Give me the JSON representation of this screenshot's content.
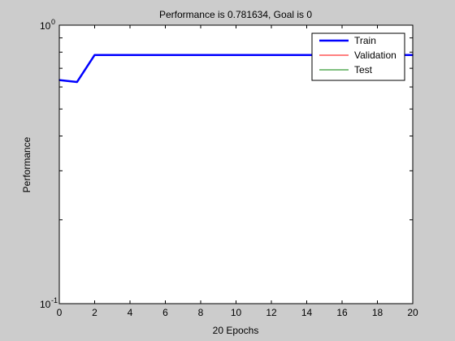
{
  "chart_data": {
    "type": "line",
    "title": "Performance is 0.781634, Goal is 0",
    "xlabel": "20 Epochs",
    "ylabel": "Performance",
    "xlim": [
      0,
      20
    ],
    "ylim": [
      0.1,
      1
    ],
    "yscale": "log",
    "grid": false,
    "legend_position": "top-right",
    "x_ticks": [
      "0",
      "2",
      "4",
      "6",
      "8",
      "10",
      "12",
      "14",
      "16",
      "18",
      "20"
    ],
    "y_ticks": [
      {
        "base": "10",
        "exp": "-1",
        "value": 0.1
      },
      {
        "base": "10",
        "exp": "0",
        "value": 1
      }
    ],
    "series": [
      {
        "name": "Train",
        "color": "#0000ff",
        "x": [
          0,
          1,
          2,
          3,
          4,
          5,
          6,
          7,
          8,
          9,
          10,
          11,
          12,
          13,
          14,
          15,
          16,
          17,
          18,
          19,
          20
        ],
        "y": [
          0.635,
          0.625,
          0.781634,
          0.781634,
          0.781634,
          0.781634,
          0.781634,
          0.781634,
          0.781634,
          0.781634,
          0.781634,
          0.781634,
          0.781634,
          0.781634,
          0.781634,
          0.781634,
          0.781634,
          0.781634,
          0.781634,
          0.781634,
          0.781634
        ]
      },
      {
        "name": "Validation",
        "color": "#ff0000",
        "x": [],
        "y": []
      },
      {
        "name": "Test",
        "color": "#008000",
        "x": [],
        "y": []
      }
    ]
  }
}
